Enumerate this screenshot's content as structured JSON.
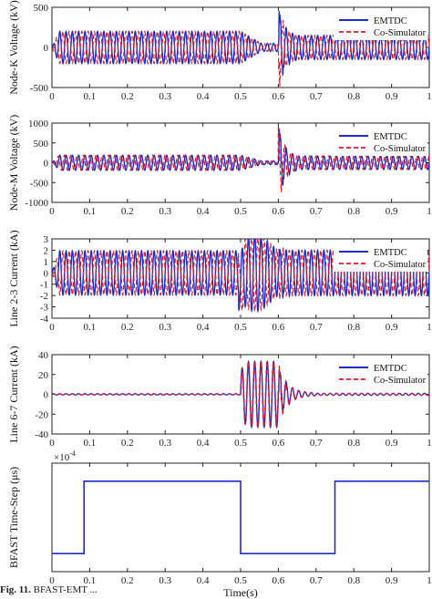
{
  "colors": {
    "emtdc": "#1f2ccc",
    "cosim": "#e3182a",
    "axis": "#222222"
  },
  "caption": {
    "label": "Fig. 11.",
    "text": " BFAST-EMT ..."
  },
  "chart_data": [
    {
      "type": "line",
      "ylabel": "Node-K Voltage (kV)",
      "ylim": [
        -500,
        500
      ],
      "yticks": [
        "-500",
        "0",
        "500"
      ],
      "xlim": [
        0,
        1
      ],
      "xticks": [
        "0",
        "0.1",
        "0.2",
        "0.3",
        "0.4",
        "0.5",
        "0.6",
        "0.7",
        "0.8",
        "0.9",
        "1"
      ],
      "legend": [
        "EMTDC",
        "Co-Simulator"
      ],
      "series": [
        {
          "name": "EMTDC",
          "amplitude": 200,
          "fault_peak": 480,
          "post_fault": 150
        },
        {
          "name": "Co-Simulator",
          "amplitude": 200,
          "fault_peak": 480,
          "post_fault": 150
        }
      ]
    },
    {
      "type": "line",
      "ylabel": "Node-M Voltage (kV)",
      "ylim": [
        -1000,
        1000
      ],
      "yticks": [
        "-1000",
        "-500",
        "0",
        "500",
        "1000"
      ],
      "xlim": [
        0,
        1
      ],
      "xticks": [
        "0",
        "0.1",
        "0.2",
        "0.3",
        "0.4",
        "0.5",
        "0.6",
        "0.7",
        "0.8",
        "0.9",
        "1"
      ],
      "legend": [
        "EMTDC",
        "Co-Simulator"
      ],
      "series": [
        {
          "name": "EMTDC",
          "amplitude": 190,
          "fault_peak": 900,
          "post_fault": 170
        },
        {
          "name": "Co-Simulator",
          "amplitude": 190,
          "fault_peak": 900,
          "post_fault": 170
        }
      ]
    },
    {
      "type": "line",
      "ylabel": "Line 2-3 Current (kA)",
      "ylim": [
        -4,
        3
      ],
      "yticks": [
        "-4",
        "-3",
        "-2",
        "-1",
        "0",
        "1",
        "2",
        "3"
      ],
      "xlim": [
        0,
        1
      ],
      "xticks": [
        "0",
        "0.1",
        "0.2",
        "0.3",
        "0.4",
        "0.5",
        "0.6",
        "0.7",
        "0.8",
        "0.9",
        "1"
      ],
      "legend": [
        "EMTDC",
        "Co-Simulator"
      ],
      "series": [
        {
          "name": "EMTDC",
          "amplitude": 1.95,
          "fault_peak": 3.7,
          "post_fault": 2.0
        },
        {
          "name": "Co-Simulator",
          "amplitude": 1.95,
          "fault_peak": 3.7,
          "post_fault": 2.0
        }
      ]
    },
    {
      "type": "line",
      "ylabel": "Line 6-7 Current (kA)",
      "ylim": [
        -40,
        40
      ],
      "yticks": [
        "-40",
        "-20",
        "0",
        "20",
        "40"
      ],
      "xlim": [
        0,
        1
      ],
      "xticks": [
        "0",
        "0.1",
        "0.2",
        "0.3",
        "0.4",
        "0.5",
        "0.6",
        "0.7",
        "0.8",
        "0.9",
        "1"
      ],
      "legend": [
        "EMTDC",
        "Co-Simulator"
      ],
      "series": [
        {
          "name": "EMTDC",
          "amplitude": 0.6,
          "fault_peak": 33,
          "post_fault": 1.0
        },
        {
          "name": "Co-Simulator",
          "amplitude": 0.6,
          "fault_peak": 33,
          "post_fault": 1.0
        }
      ]
    },
    {
      "type": "line",
      "ylabel": "BFAST Time-Step (μs)",
      "exponent": "×10",
      "exponent_power": "-4",
      "xlabel": "Time(s)",
      "xlim": [
        0,
        1
      ],
      "xticks": [
        "0",
        "0.1",
        "0.2",
        "0.3",
        "0.4",
        "0.5",
        "0.6",
        "0.7",
        "0.8",
        "0.9",
        "1"
      ],
      "ylim": [
        0,
        1.2
      ],
      "series": [
        {
          "name": "time-step",
          "x": [
            0,
            0.085,
            0.085,
            0.5,
            0.5,
            0.75,
            0.75,
            1.0
          ],
          "y": [
            0.2,
            0.2,
            1.0,
            1.0,
            0.2,
            0.2,
            1.0,
            1.0
          ]
        }
      ]
    }
  ]
}
